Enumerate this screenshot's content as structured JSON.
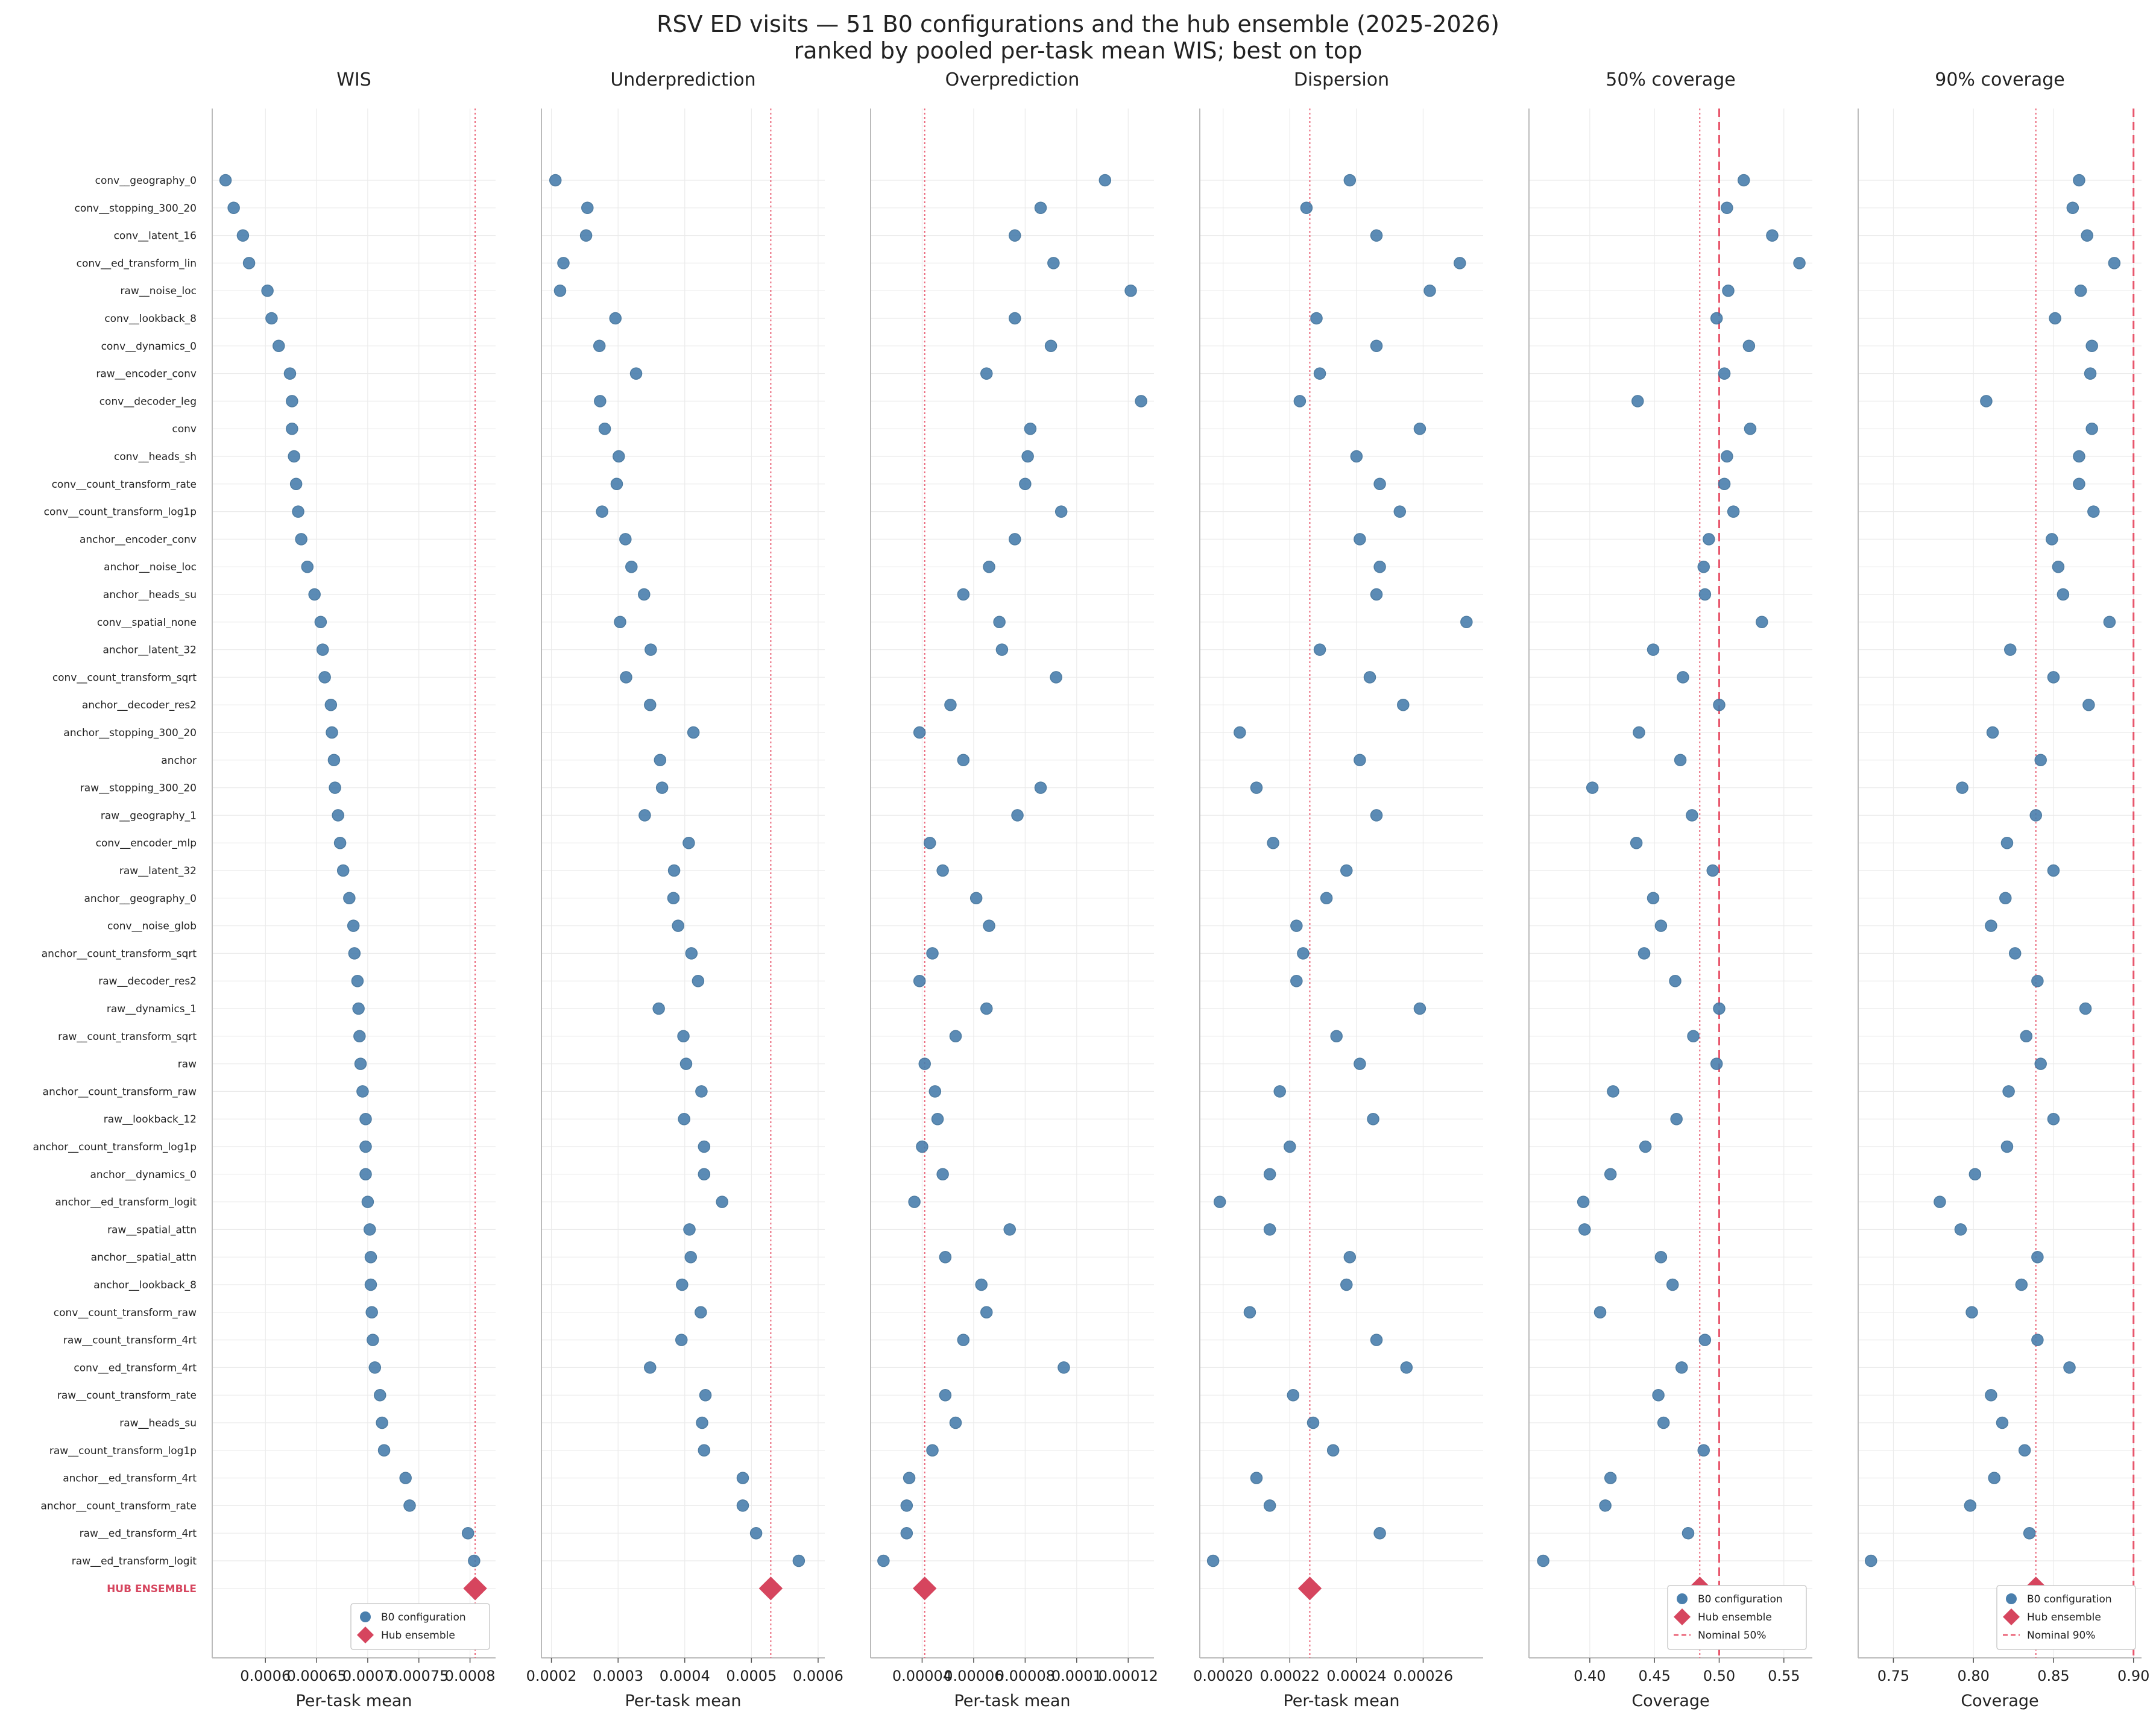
{
  "title": "RSV ED visits — 51 B0 configurations and the hub ensemble (2025-2026)",
  "subtitle": "ranked by pooled per-task mean WIS; best on top",
  "colors": {
    "points": "#4a7fad",
    "hub": "#d6455e",
    "ref_line": "#e8566c",
    "grid": "#ebebeb"
  },
  "legend_items": {
    "b0": "B0 configuration",
    "hub": "Hub ensemble",
    "nominal50": "Nominal 50%",
    "nominal90": "Nominal 90%"
  },
  "chart_data": {
    "type": "scatter",
    "categories": [
      "conv__geography_0",
      "conv__stopping_300_20",
      "conv__latent_16",
      "conv__ed_transform_lin",
      "raw__noise_loc",
      "conv__lookback_8",
      "conv__dynamics_0",
      "raw__encoder_conv",
      "conv__decoder_leg",
      "conv",
      "conv__heads_sh",
      "conv__count_transform_rate",
      "conv__count_transform_log1p",
      "anchor__encoder_conv",
      "anchor__noise_loc",
      "anchor__heads_su",
      "conv__spatial_none",
      "anchor__latent_32",
      "conv__count_transform_sqrt",
      "anchor__decoder_res2",
      "anchor__stopping_300_20",
      "anchor",
      "raw__stopping_300_20",
      "raw__geography_1",
      "conv__encoder_mlp",
      "raw__latent_32",
      "anchor__geography_0",
      "conv__noise_glob",
      "anchor__count_transform_sqrt",
      "raw__decoder_res2",
      "raw__dynamics_1",
      "raw__count_transform_sqrt",
      "raw",
      "anchor__count_transform_raw",
      "raw__lookback_12",
      "anchor__count_transform_log1p",
      "anchor__dynamics_0",
      "anchor__ed_transform_logit",
      "raw__spatial_attn",
      "anchor__spatial_attn",
      "anchor__lookback_8",
      "conv__count_transform_raw",
      "raw__count_transform_4rt",
      "conv__ed_transform_4rt",
      "raw__count_transform_rate",
      "raw__heads_su",
      "raw__count_transform_log1p",
      "anchor__ed_transform_4rt",
      "anchor__count_transform_rate",
      "raw__ed_transform_4rt",
      "raw__ed_transform_logit",
      "HUB ENSEMBLE"
    ],
    "panels": [
      {
        "title": "WIS",
        "xlabel": "Per-task mean",
        "xlim": [
          0.000548,
          0.000825
        ],
        "ticks": [
          0.0006,
          0.00065,
          0.0007,
          0.00075,
          0.0008
        ],
        "tick_labels": [
          "0.0006",
          "0.00065",
          "0.0007",
          "0.00075",
          "0.0008"
        ],
        "values": [
          0.000561,
          0.000569,
          0.000578,
          0.000584,
          0.000602,
          0.000606,
          0.000613,
          0.000624,
          0.000626,
          0.000626,
          0.000628,
          0.00063,
          0.000632,
          0.000635,
          0.000641,
          0.000648,
          0.000654,
          0.000656,
          0.000658,
          0.000664,
          0.000665,
          0.000667,
          0.000668,
          0.000671,
          0.000673,
          0.000676,
          0.000682,
          0.000686,
          0.000687,
          0.00069,
          0.000691,
          0.000692,
          0.000693,
          0.000695,
          0.000698,
          0.000698,
          0.000698,
          0.0007,
          0.000702,
          0.000703,
          0.000703,
          0.000704,
          0.000705,
          0.000707,
          0.000712,
          0.000714,
          0.000716,
          0.000737,
          0.000741,
          0.000798,
          0.000804
        ],
        "hub": 0.000805,
        "ref": 0.000805,
        "ref_style": "dotted",
        "legend": [
          "b0",
          "hub"
        ]
      },
      {
        "title": "Underprediction",
        "xlabel": "Per-task mean",
        "xlim": [
          0.000185,
          0.00061
        ],
        "ticks": [
          0.0002,
          0.0003,
          0.0004,
          0.0005,
          0.0006
        ],
        "tick_labels": [
          "0.0002",
          "0.0003",
          "0.0004",
          "0.0005",
          "0.0006"
        ],
        "values": [
          0.000206,
          0.000254,
          0.000252,
          0.000218,
          0.000213,
          0.000296,
          0.000272,
          0.000327,
          0.000273,
          0.00028,
          0.000301,
          0.000298,
          0.000276,
          0.000311,
          0.00032,
          0.000339,
          0.000303,
          0.000349,
          0.000312,
          0.000348,
          0.000413,
          0.000363,
          0.000366,
          0.00034,
          0.000406,
          0.000384,
          0.000383,
          0.00039,
          0.00041,
          0.00042,
          0.000361,
          0.000398,
          0.000402,
          0.000425,
          0.000399,
          0.000429,
          0.000429,
          0.000456,
          0.000407,
          0.000409,
          0.000396,
          0.000424,
          0.000395,
          0.000348,
          0.000431,
          0.000426,
          0.000429,
          0.000487,
          0.000487,
          0.000507,
          0.000571
        ],
        "hub": 0.000529,
        "ref": 0.000529,
        "ref_style": "dotted",
        "legend": []
      },
      {
        "title": "Overprediction",
        "xlabel": "Per-task mean",
        "xlim": [
          2e-05,
          0.00013
        ],
        "ticks": [
          4e-05,
          6e-05,
          8e-05,
          0.0001,
          0.00012
        ],
        "tick_labels": [
          "0.00004",
          "0.00006",
          "0.00008",
          "0.0001",
          "0.00012"
        ],
        "values": [
          0.000111,
          8.6e-05,
          7.6e-05,
          9.1e-05,
          0.000121,
          7.6e-05,
          9e-05,
          6.5e-05,
          0.000125,
          8.2e-05,
          8.1e-05,
          8e-05,
          9.4e-05,
          7.6e-05,
          6.6e-05,
          5.6e-05,
          7e-05,
          7.1e-05,
          9.2e-05,
          5.1e-05,
          3.9e-05,
          5.6e-05,
          8.6e-05,
          7.7e-05,
          4.3e-05,
          4.8e-05,
          6.1e-05,
          6.6e-05,
          4.4e-05,
          3.9e-05,
          6.5e-05,
          5.3e-05,
          4.1e-05,
          4.5e-05,
          4.6e-05,
          4e-05,
          4.8e-05,
          3.7e-05,
          7.4e-05,
          4.9e-05,
          6.3e-05,
          6.5e-05,
          5.6e-05,
          9.5e-05,
          4.9e-05,
          5.3e-05,
          4.4e-05,
          3.5e-05,
          3.4e-05,
          3.4e-05,
          2.5e-05
        ],
        "hub": 4.1e-05,
        "ref": 4.1e-05,
        "ref_style": "dotted",
        "legend": []
      },
      {
        "title": "Dispersion",
        "xlabel": "Per-task mean",
        "xlim": [
          0.000193,
          0.000278
        ],
        "ticks": [
          0.0002,
          0.00022,
          0.00024,
          0.00026
        ],
        "tick_labels": [
          "0.00020",
          "0.00022",
          "0.00024",
          "0.00026"
        ],
        "values": [
          0.000238,
          0.000225,
          0.000246,
          0.000271,
          0.000262,
          0.000228,
          0.000246,
          0.000229,
          0.000223,
          0.000259,
          0.00024,
          0.000247,
          0.000253,
          0.000241,
          0.000247,
          0.000246,
          0.000273,
          0.000229,
          0.000244,
          0.000254,
          0.000205,
          0.000241,
          0.00021,
          0.000246,
          0.000215,
          0.000237,
          0.000231,
          0.000222,
          0.000224,
          0.000222,
          0.000259,
          0.000234,
          0.000241,
          0.000217,
          0.000245,
          0.00022,
          0.000214,
          0.000199,
          0.000214,
          0.000238,
          0.000237,
          0.000208,
          0.000246,
          0.000255,
          0.000221,
          0.000227,
          0.000233,
          0.00021,
          0.000214,
          0.000247,
          0.000197
        ],
        "hub": 0.000226,
        "ref": 0.000226,
        "ref_style": "dotted",
        "legend": []
      },
      {
        "title": "50% coverage",
        "xlabel": "Coverage",
        "xlim": [
          0.353,
          0.572
        ],
        "ticks": [
          0.4,
          0.45,
          0.5,
          0.55
        ],
        "tick_labels": [
          "0.40",
          "0.45",
          "0.50",
          "0.55"
        ],
        "values": [
          0.519,
          0.506,
          0.541,
          0.562,
          0.507,
          0.498,
          0.523,
          0.504,
          0.437,
          0.524,
          0.506,
          0.504,
          0.511,
          0.492,
          0.488,
          0.489,
          0.533,
          0.449,
          0.472,
          0.5,
          0.438,
          0.47,
          0.402,
          0.479,
          0.436,
          0.495,
          0.449,
          0.455,
          0.442,
          0.466,
          0.5,
          0.48,
          0.498,
          0.418,
          0.467,
          0.443,
          0.416,
          0.395,
          0.396,
          0.455,
          0.464,
          0.408,
          0.489,
          0.471,
          0.453,
          0.457,
          0.488,
          0.416,
          0.412,
          0.476,
          0.364
        ],
        "hub": 0.485,
        "ref": 0.485,
        "ref_style": "dotted",
        "nominal": 0.5,
        "legend": [
          "b0",
          "hub",
          "nominal50"
        ]
      },
      {
        "title": "90% coverage",
        "xlabel": "Coverage",
        "xlim": [
          0.728,
          0.905
        ],
        "ticks": [
          0.75,
          0.8,
          0.85,
          0.9
        ],
        "tick_labels": [
          "0.75",
          "0.80",
          "0.85",
          "0.90"
        ],
        "values": [
          0.866,
          0.862,
          0.871,
          0.888,
          0.867,
          0.851,
          0.874,
          0.873,
          0.808,
          0.874,
          0.866,
          0.866,
          0.875,
          0.849,
          0.853,
          0.856,
          0.885,
          0.823,
          0.85,
          0.872,
          0.812,
          0.842,
          0.793,
          0.839,
          0.821,
          0.85,
          0.82,
          0.811,
          0.826,
          0.84,
          0.87,
          0.833,
          0.842,
          0.822,
          0.85,
          0.821,
          0.801,
          0.779,
          0.792,
          0.84,
          0.83,
          0.799,
          0.84,
          0.86,
          0.811,
          0.818,
          0.832,
          0.813,
          0.798,
          0.835,
          0.736
        ],
        "hub": 0.839,
        "ref": 0.839,
        "ref_style": "dotted",
        "nominal": 0.9,
        "legend": [
          "b0",
          "hub",
          "nominal90"
        ]
      }
    ]
  }
}
